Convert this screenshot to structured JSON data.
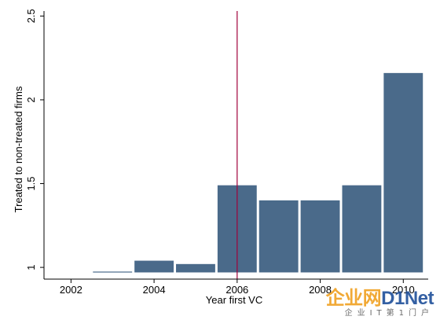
{
  "chart_data": {
    "type": "bar",
    "title": "",
    "xlabel": "Year first VC",
    "ylabel": "Treated to non-treated firms",
    "x": [
      2003,
      2004,
      2005,
      2006,
      2007,
      2008,
      2009,
      2010
    ],
    "values": [
      0.975,
      1.04,
      1.02,
      1.49,
      1.4,
      1.4,
      1.49,
      2.16
    ],
    "bar_color": "#4a6a8a",
    "baseline": 0.97,
    "xlim": [
      2001.35,
      2010.6
    ],
    "ylim": [
      0.93,
      2.53
    ],
    "x_ticks": [
      "2002",
      "2004",
      "2006",
      "2008",
      "2010"
    ],
    "y_ticks": [
      "1",
      "1.5",
      "2",
      "2.5"
    ],
    "reference_line": {
      "x": 2006,
      "color": "#a0003a"
    },
    "grid": false,
    "legend": "none"
  },
  "watermark": {
    "logo_left": "企业网",
    "logo_right": "D1Net",
    "subtitle": "企业IT第1门户"
  }
}
